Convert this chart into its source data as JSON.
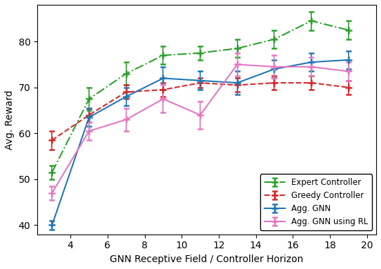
{
  "x": [
    3,
    5,
    7,
    9,
    11,
    13,
    15,
    17,
    19
  ],
  "expert": [
    51.5,
    67.5,
    73.0,
    77.0,
    77.5,
    78.5,
    80.5,
    84.5,
    82.5
  ],
  "expert_err": [
    1.5,
    2.5,
    2.5,
    2.0,
    1.5,
    2.0,
    2.0,
    2.0,
    2.0
  ],
  "greedy": [
    58.5,
    64.0,
    69.0,
    69.5,
    71.0,
    70.5,
    71.0,
    71.0,
    70.0
  ],
  "greedy_err": [
    2.0,
    1.5,
    1.5,
    1.5,
    1.0,
    1.5,
    1.5,
    1.5,
    1.5
  ],
  "agg_gnn": [
    40.0,
    63.5,
    68.0,
    72.0,
    71.5,
    71.0,
    74.0,
    75.5,
    76.0
  ],
  "agg_gnn_err": [
    1.0,
    2.0,
    2.0,
    2.5,
    2.0,
    2.5,
    2.0,
    2.0,
    2.0
  ],
  "agg_rl": [
    47.0,
    60.5,
    63.0,
    67.5,
    64.0,
    75.0,
    74.5,
    74.5,
    73.5
  ],
  "agg_rl_err": [
    1.5,
    2.0,
    2.5,
    3.0,
    3.0,
    2.5,
    2.5,
    2.0,
    2.0
  ],
  "xlabel": "GNN Receptive Field / Controller Horizon",
  "ylabel": "Avg. Reward",
  "expert_label": "Expert Controller",
  "greedy_label": "Greedy Controller",
  "agg_gnn_label": "Agg. GNN",
  "agg_rl_label": "Agg. GNN using RL",
  "expert_color": "#2ca02c",
  "greedy_color": "#d62728",
  "agg_gnn_color": "#1f77b4",
  "agg_rl_color": "#e377c2",
  "ylim": [
    38,
    88
  ],
  "xlim": [
    2.2,
    20.5
  ],
  "xticks": [
    4,
    6,
    8,
    10,
    12,
    14,
    16,
    18,
    20
  ],
  "yticks": [
    40,
    50,
    60,
    70,
    80
  ]
}
